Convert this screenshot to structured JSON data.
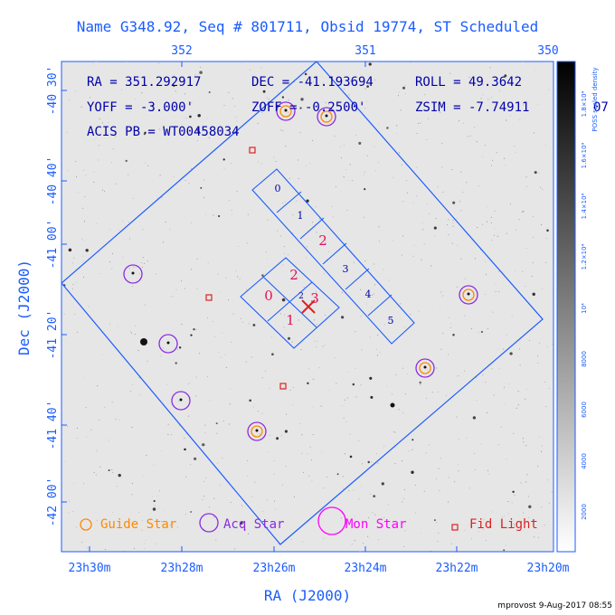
{
  "title": "Name G348.92, Seq # 801711, Obsid 19774, ST Scheduled",
  "top_axis": {
    "ticks": [
      "352",
      "351",
      "350"
    ]
  },
  "bottom_axis": {
    "label": "RA (J2000)",
    "ticks": [
      "23h30m",
      "23h28m",
      "23h26m",
      "23h24m",
      "23h22m",
      "23h20m"
    ]
  },
  "left_axis": {
    "label": "Dec (J2000)",
    "ticks": [
      "-40 30'",
      "-40 40'",
      "-41 00'",
      "-41 20'",
      "-41 40'",
      "-42 00'"
    ]
  },
  "info": {
    "ra": "RA = 351.292917",
    "dec": "DEC = -41.193694",
    "roll": "ROLL = 49.3642",
    "yoff": "YOFF = -3.000'",
    "zoff": "ZOFF = -0.2500'",
    "zsim": "ZSIM = -7.74911",
    "zsim_tail": "07",
    "acis": "ACIS PB = WT00458034"
  },
  "chips": [
    "0",
    "1",
    "2",
    "3",
    "4",
    "5",
    "2",
    "0",
    "1",
    "3",
    "2"
  ],
  "legend": {
    "guide": "Guide Star",
    "acq": "Acq Star",
    "mon": "Mon Star",
    "fid": "Fid Light"
  },
  "colorbar": {
    "label": "POSS scaled density",
    "ticks": [
      "2000",
      "4000",
      "6000",
      "8000",
      "10⁴",
      "1.2×10⁴",
      "1.4×10⁴",
      "1.6×10⁴",
      "1.8×10⁴"
    ]
  },
  "footer": "mprovost  9-Aug-2017 08:55",
  "colors": {
    "axis": "#1a5cff",
    "frame": "#1a5cff",
    "chip_text": "#0000aa",
    "chip_text_red": "#e0105a",
    "guide": "#ff8800",
    "acq": "#8a2be2",
    "mon": "#ff00ff",
    "fid": "#e02020",
    "info_text": "#0000aa"
  }
}
